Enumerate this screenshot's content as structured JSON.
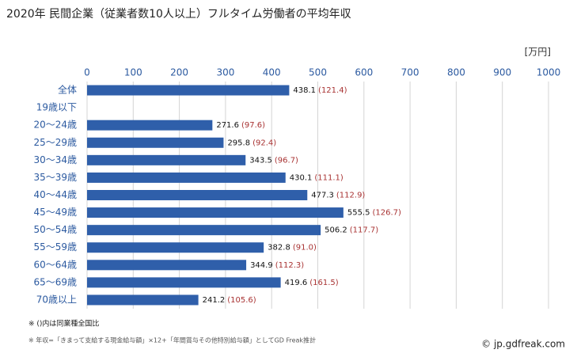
{
  "chart_data": {
    "type": "bar",
    "orientation": "horizontal",
    "title": "2020年 民間企業（従業者数10人以上）フルタイム労働者の平均年収",
    "unit": "[万円]",
    "categories": [
      "全体",
      "19歳以下",
      "20～24歳",
      "25～29歳",
      "30～34歳",
      "35～39歳",
      "40～44歳",
      "45～49歳",
      "50～54歳",
      "55～59歳",
      "60～64歳",
      "65～69歳",
      "70歳以上"
    ],
    "values": [
      438.1,
      null,
      271.6,
      295.8,
      343.5,
      430.1,
      477.3,
      555.5,
      506.2,
      382.8,
      344.9,
      419.6,
      241.2
    ],
    "comparison_labels": [
      "(121.4)",
      null,
      "(97.6)",
      "(92.4)",
      "(96.7)",
      "(111.1)",
      "(112.9)",
      "(126.7)",
      "(117.7)",
      "(91.0)",
      "(112.3)",
      "(161.5)",
      "(105.6)"
    ],
    "color": "#2f5faa",
    "xlim": [
      0,
      1000
    ],
    "xticks": [
      0,
      100,
      200,
      300,
      400,
      500,
      600,
      700,
      800,
      900,
      1000
    ],
    "grid": true,
    "notes": [
      "※ ()内は同業種全国比",
      "※ 年収=「きまって支給する現金給与額」×12+「年間賞与その他特別給与額」としてGD Freak推計"
    ],
    "source": "© jp.gdfreak.com"
  }
}
